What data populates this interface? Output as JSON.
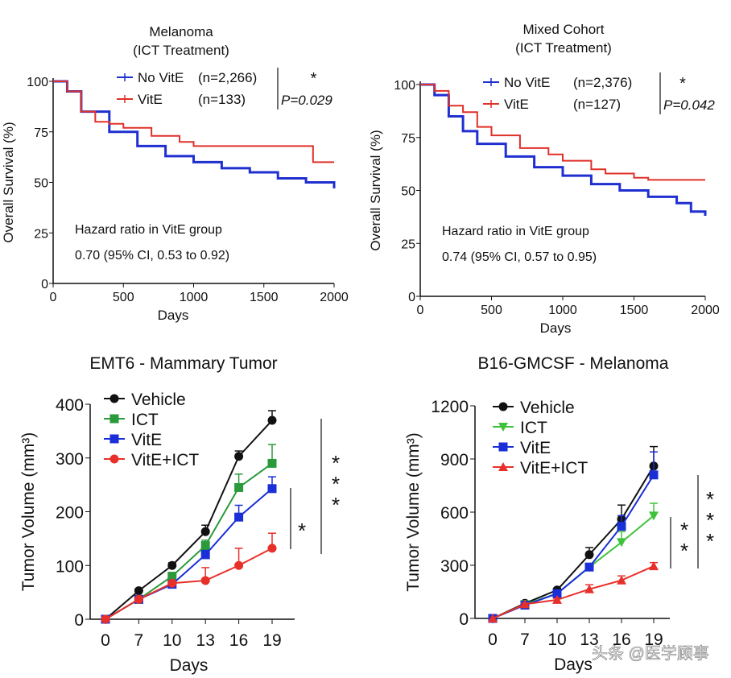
{
  "chart_data": [
    {
      "type": "line",
      "subtype": "kaplan-meier",
      "title": "Melanoma",
      "subtitle": "(ICT Treatment)",
      "xlabel": "Days",
      "ylabel": "Overall Survival (%)",
      "xlim": [
        0,
        2000
      ],
      "ylim": [
        0,
        100
      ],
      "xticks": [
        "0",
        "500",
        "1000",
        "1500",
        "2000"
      ],
      "yticks": [
        "0",
        "25",
        "50",
        "75",
        "100"
      ],
      "series": [
        {
          "name": "No VitE",
          "n_label": "(n=2,266)",
          "color": "#1f2fd0",
          "x": [
            0,
            100,
            200,
            400,
            600,
            800,
            1000,
            1200,
            1400,
            1600,
            1800,
            2000
          ],
          "y": [
            100,
            95,
            85,
            75,
            68,
            63,
            60,
            57,
            55,
            52,
            50,
            47
          ]
        },
        {
          "name": "VitE",
          "n_label": "(n=133)",
          "color": "#e0302a",
          "x": [
            0,
            100,
            200,
            300,
            400,
            500,
            700,
            900,
            1000,
            1850,
            1850,
            2000
          ],
          "y": [
            100,
            95,
            85,
            80,
            79,
            77,
            73,
            70,
            68,
            68,
            60,
            60
          ]
        }
      ],
      "significance": "*",
      "p_value": "P=0.029",
      "annotation_1": "Hazard ratio in VitE group",
      "annotation_2": "0.70 (95% CI, 0.53 to 0.92)",
      "legend": "top-right"
    },
    {
      "type": "line",
      "subtype": "kaplan-meier",
      "title": "Mixed Cohort",
      "subtitle": "(ICT Treatment)",
      "xlabel": "Days",
      "ylabel": "Overall Survival (%)",
      "xlim": [
        0,
        2000
      ],
      "ylim": [
        0,
        100
      ],
      "xticks": [
        "0",
        "500",
        "1000",
        "1500",
        "2000"
      ],
      "yticks": [
        "0",
        "25",
        "50",
        "75",
        "100"
      ],
      "series": [
        {
          "name": "No VitE",
          "n_label": "(n=2,376)",
          "color": "#1f2fd0",
          "x": [
            0,
            100,
            200,
            300,
            400,
            600,
            800,
            1000,
            1200,
            1400,
            1600,
            1800,
            1900,
            2000
          ],
          "y": [
            100,
            95,
            85,
            78,
            72,
            66,
            61,
            57,
            53,
            50,
            47,
            44,
            40,
            38
          ]
        },
        {
          "name": "VitE",
          "n_label": "(n=127)",
          "color": "#e0302a",
          "x": [
            0,
            100,
            200,
            300,
            400,
            500,
            700,
            900,
            1000,
            1200,
            1300,
            1500,
            1600,
            2000
          ],
          "y": [
            100,
            97,
            90,
            87,
            80,
            76,
            70,
            67,
            64,
            60,
            58,
            56,
            55,
            55
          ]
        }
      ],
      "significance": "*",
      "p_value": "P=0.042",
      "annotation_1": "Hazard ratio in VitE group",
      "annotation_2": "0.74 (95% CI, 0.57 to 0.95)",
      "legend": "top-right"
    },
    {
      "type": "line",
      "title": "EMT6 - Mammary Tumor",
      "xlabel": "Days",
      "ylabel": "Tumor Volume (mm³)",
      "categories": [
        "0",
        "7",
        "10",
        "13",
        "16",
        "19"
      ],
      "ylim": [
        0,
        400
      ],
      "yticks": [
        "0",
        "100",
        "200",
        "300",
        "400"
      ],
      "series": [
        {
          "name": "Vehicle",
          "color": "#111111",
          "marker": "circle",
          "values": [
            0,
            53,
            100,
            163,
            303,
            370
          ],
          "err": [
            0,
            4,
            5,
            12,
            10,
            18
          ]
        },
        {
          "name": "ICT",
          "color": "#2a9a3a",
          "marker": "square",
          "values": [
            0,
            37,
            80,
            137,
            245,
            290
          ],
          "err": [
            0,
            4,
            6,
            10,
            25,
            35
          ]
        },
        {
          "name": "VitE",
          "color": "#1a2fd8",
          "marker": "square",
          "values": [
            0,
            37,
            65,
            120,
            190,
            243
          ],
          "err": [
            0,
            3,
            4,
            8,
            22,
            22
          ]
        },
        {
          "name": "VitE+ICT",
          "color": "#e8302a",
          "marker": "circle",
          "values": [
            0,
            37,
            67,
            72,
            100,
            132
          ],
          "err": [
            0,
            3,
            4,
            24,
            32,
            28
          ]
        }
      ],
      "significance": [
        "*",
        "***"
      ],
      "legend": "top-left"
    },
    {
      "type": "line",
      "title": "B16-GMCSF - Melanoma",
      "xlabel": "Days",
      "ylabel": "Tumor Volume (mm³)",
      "categories": [
        "0",
        "7",
        "10",
        "13",
        "16",
        "19"
      ],
      "ylim": [
        0,
        1200
      ],
      "yticks": [
        "0",
        "300",
        "600",
        "900",
        "1200"
      ],
      "series": [
        {
          "name": "Vehicle",
          "color": "#111111",
          "marker": "circle",
          "values": [
            0,
            85,
            160,
            360,
            560,
            860
          ],
          "err": [
            0,
            8,
            10,
            40,
            80,
            110
          ]
        },
        {
          "name": "ICT",
          "color": "#3ec23a",
          "marker": "triangle-down",
          "values": [
            0,
            80,
            140,
            290,
            430,
            580
          ],
          "err": [
            0,
            6,
            10,
            20,
            60,
            70
          ]
        },
        {
          "name": "VitE",
          "color": "#1a2fd8",
          "marker": "square",
          "values": [
            0,
            75,
            140,
            290,
            520,
            810
          ],
          "err": [
            0,
            6,
            10,
            20,
            60,
            130
          ]
        },
        {
          "name": "VitE+ICT",
          "color": "#e8302a",
          "marker": "triangle-up",
          "values": [
            0,
            80,
            105,
            165,
            215,
            295
          ],
          "err": [
            0,
            6,
            8,
            25,
            25,
            20
          ]
        }
      ],
      "significance": [
        "**",
        "***"
      ],
      "legend": "top-left"
    }
  ],
  "watermark": "头条 @医学顾事"
}
